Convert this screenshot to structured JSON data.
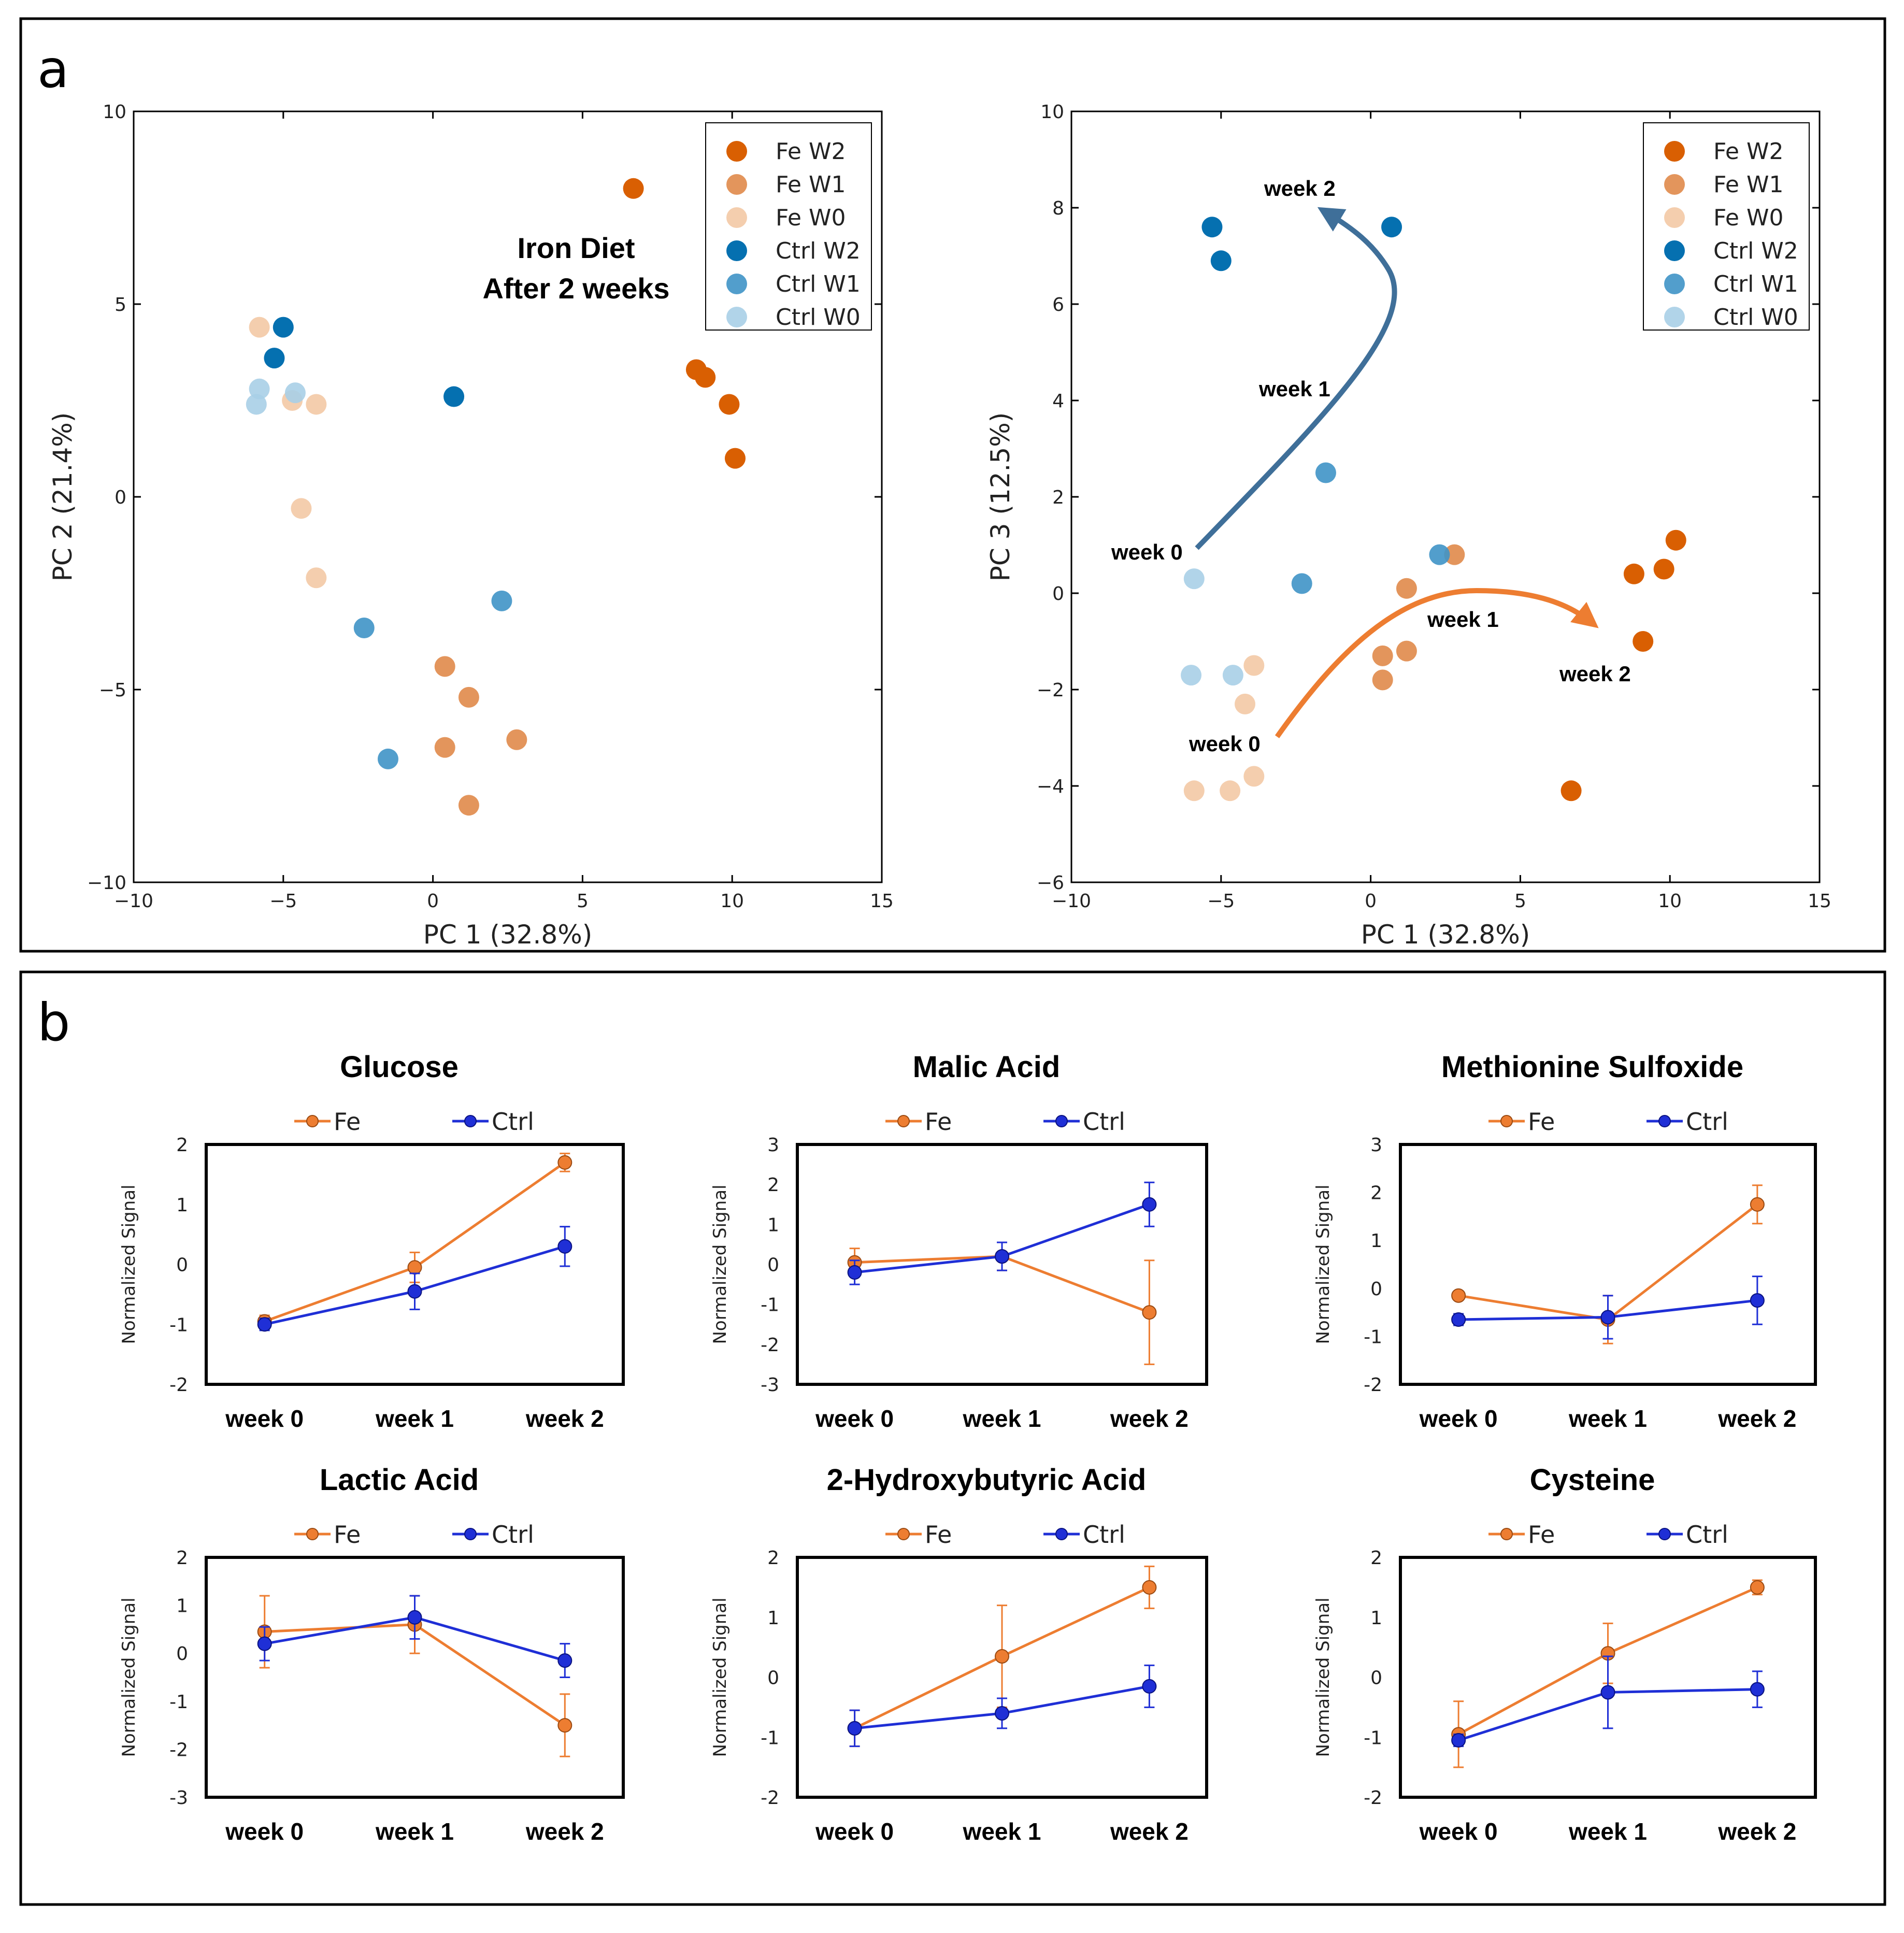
{
  "panel_a": {
    "label": "a",
    "legend": [
      {
        "name": "Fe W2",
        "color": "#d95f02",
        "opacity": 1.0
      },
      {
        "name": "Fe W1",
        "color": "#e08a4a",
        "opacity": 0.9
      },
      {
        "name": "Fe W0",
        "color": "#f3c9a5",
        "opacity": 0.9
      },
      {
        "name": "Ctrl W2",
        "color": "#0570b0",
        "opacity": 1.0
      },
      {
        "name": "Ctrl W1",
        "color": "#3f94c6",
        "opacity": 0.9
      },
      {
        "name": "Ctrl W0",
        "color": "#a9cfe7",
        "opacity": 0.9
      }
    ],
    "annotation_line1": "Iron Diet",
    "annotation_line2": "After 2 weeks",
    "arrow_labels": {
      "ctrl_week0": "week 0",
      "ctrl_week1": "week 1",
      "ctrl_week2": "week 2",
      "fe_week0": "week 0",
      "fe_week1": "week 1",
      "fe_week2": "week 2"
    }
  },
  "panel_b": {
    "label": "b",
    "legend_fe": "Fe",
    "legend_ctrl": "Ctrl",
    "fe_color": "#ed7d31",
    "ctrl_color": "#1f2fd6"
  },
  "chart_data": [
    {
      "type": "scatter",
      "title": "",
      "xlabel": "PC 1 (32.8%)",
      "ylabel": "PC 2 (21.4%)",
      "xlim": [
        -10,
        15
      ],
      "ylim": [
        -10,
        10
      ],
      "xticks": [
        -10,
        -5,
        0,
        5,
        10,
        15
      ],
      "yticks": [
        -10,
        -5,
        0,
        5,
        10
      ],
      "series": [
        {
          "name": "Fe W2",
          "points": [
            [
              6.7,
              8.0
            ],
            [
              8.8,
              3.3
            ],
            [
              9.1,
              3.1
            ],
            [
              9.9,
              2.4
            ],
            [
              10.1,
              1.0
            ]
          ]
        },
        {
          "name": "Fe W1",
          "points": [
            [
              0.4,
              -4.4
            ],
            [
              1.2,
              -5.2
            ],
            [
              0.4,
              -6.5
            ],
            [
              2.8,
              -6.3
            ],
            [
              1.2,
              -8.0
            ]
          ]
        },
        {
          "name": "Fe W0",
          "points": [
            [
              -5.8,
              4.4
            ],
            [
              -4.7,
              2.5
            ],
            [
              -3.9,
              2.4
            ],
            [
              -4.4,
              -0.3
            ],
            [
              -3.9,
              -2.1
            ]
          ]
        },
        {
          "name": "Ctrl W2",
          "points": [
            [
              -5.0,
              4.4
            ],
            [
              -5.3,
              3.6
            ],
            [
              0.7,
              2.6
            ]
          ]
        },
        {
          "name": "Ctrl W1",
          "points": [
            [
              -2.3,
              -3.4
            ],
            [
              2.3,
              -2.7
            ],
            [
              -1.5,
              -6.8
            ]
          ]
        },
        {
          "name": "Ctrl W0",
          "points": [
            [
              -5.8,
              2.8
            ],
            [
              -4.6,
              2.7
            ],
            [
              -5.9,
              2.4
            ]
          ]
        }
      ]
    },
    {
      "type": "scatter",
      "title": "",
      "xlabel": "PC 1 (32.8%)",
      "ylabel": "PC 3 (12.5%)",
      "xlim": [
        -10,
        15
      ],
      "ylim": [
        -6,
        10
      ],
      "xticks": [
        -10,
        -5,
        0,
        5,
        10,
        15
      ],
      "yticks": [
        -6,
        -4,
        -2,
        0,
        2,
        4,
        6,
        8,
        10
      ],
      "series": [
        {
          "name": "Fe W2",
          "points": [
            [
              6.7,
              -4.1
            ],
            [
              8.8,
              0.4
            ],
            [
              9.1,
              -1.0
            ],
            [
              9.8,
              0.5
            ],
            [
              10.2,
              1.1
            ]
          ]
        },
        {
          "name": "Fe W1",
          "points": [
            [
              1.2,
              0.1
            ],
            [
              0.4,
              -1.3
            ],
            [
              1.2,
              -1.2
            ],
            [
              0.4,
              -1.8
            ],
            [
              2.8,
              0.8
            ]
          ]
        },
        {
          "name": "Fe W0",
          "points": [
            [
              -4.2,
              -2.3
            ],
            [
              -3.9,
              -1.5
            ],
            [
              -3.9,
              -3.8
            ],
            [
              -4.7,
              -4.1
            ],
            [
              -5.9,
              -4.1
            ]
          ]
        },
        {
          "name": "Ctrl W2",
          "points": [
            [
              -5.3,
              7.6
            ],
            [
              -5.0,
              6.9
            ],
            [
              0.7,
              7.6
            ]
          ]
        },
        {
          "name": "Ctrl W1",
          "points": [
            [
              -1.5,
              2.5
            ],
            [
              -2.3,
              0.2
            ],
            [
              2.3,
              0.8
            ]
          ]
        },
        {
          "name": "Ctrl W0",
          "points": [
            [
              -5.9,
              0.3
            ],
            [
              -6.0,
              -1.7
            ],
            [
              -4.6,
              -1.7
            ]
          ]
        }
      ]
    },
    {
      "type": "line",
      "title": "Glucose",
      "ylabel": "Normalized Signal",
      "categories": [
        "week 0",
        "week 1",
        "week 2"
      ],
      "ylim": [
        -2,
        2
      ],
      "yticks": [
        -2,
        -1,
        0,
        1,
        2
      ],
      "series": [
        {
          "name": "Fe",
          "values": [
            -0.95,
            -0.05,
            1.7
          ],
          "errors": [
            0.1,
            0.25,
            0.15
          ]
        },
        {
          "name": "Ctrl",
          "values": [
            -1.0,
            -0.45,
            0.3
          ],
          "errors": [
            0.1,
            0.3,
            0.33
          ]
        }
      ]
    },
    {
      "type": "line",
      "title": "Malic Acid",
      "ylabel": "Normalized Signal",
      "categories": [
        "week 0",
        "week 1",
        "week 2"
      ],
      "ylim": [
        -3,
        3
      ],
      "yticks": [
        -3,
        -2,
        -1,
        0,
        1,
        2,
        3
      ],
      "series": [
        {
          "name": "Fe",
          "values": [
            0.05,
            0.2,
            -1.2
          ],
          "errors": [
            0.35,
            0.35,
            1.3
          ]
        },
        {
          "name": "Ctrl",
          "values": [
            -0.2,
            0.2,
            1.5
          ],
          "errors": [
            0.3,
            0.35,
            0.55
          ]
        }
      ]
    },
    {
      "type": "line",
      "title": "Methionine Sulfoxide",
      "ylabel": "Normalized Signal",
      "categories": [
        "week 0",
        "week 1",
        "week 2"
      ],
      "ylim": [
        -2,
        3
      ],
      "yticks": [
        -2,
        -1,
        0,
        1,
        2,
        3
      ],
      "series": [
        {
          "name": "Fe",
          "values": [
            -0.15,
            -0.65,
            1.75
          ],
          "errors": [
            0.05,
            0.5,
            0.4
          ]
        },
        {
          "name": "Ctrl",
          "values": [
            -0.65,
            -0.6,
            -0.25
          ],
          "errors": [
            0.12,
            0.45,
            0.5
          ]
        }
      ]
    },
    {
      "type": "line",
      "title": "Lactic Acid",
      "ylabel": "Normalized Signal",
      "categories": [
        "week 0",
        "week 1",
        "week 2"
      ],
      "ylim": [
        -3,
        2
      ],
      "yticks": [
        -3,
        -2,
        -1,
        0,
        1,
        2
      ],
      "series": [
        {
          "name": "Fe",
          "values": [
            0.45,
            0.6,
            -1.5
          ],
          "errors": [
            0.75,
            0.6,
            0.65
          ]
        },
        {
          "name": "Ctrl",
          "values": [
            0.2,
            0.75,
            -0.15
          ],
          "errors": [
            0.35,
            0.45,
            0.35
          ]
        }
      ]
    },
    {
      "type": "line",
      "title": "2-Hydroxybutyric Acid",
      "ylabel": "Normalized Signal",
      "categories": [
        "week 0",
        "week 1",
        "week 2"
      ],
      "ylim": [
        -2,
        2
      ],
      "yticks": [
        -2,
        -1,
        0,
        1,
        2
      ],
      "series": [
        {
          "name": "Fe",
          "values": [
            -0.85,
            0.35,
            1.5
          ],
          "errors": [
            0.3,
            0.85,
            0.35
          ]
        },
        {
          "name": "Ctrl",
          "values": [
            -0.85,
            -0.6,
            -0.15
          ],
          "errors": [
            0.3,
            0.25,
            0.35
          ]
        }
      ]
    },
    {
      "type": "line",
      "title": "Cysteine",
      "ylabel": "Normalized Signal",
      "categories": [
        "week 0",
        "week 1",
        "week 2"
      ],
      "ylim": [
        -2,
        2
      ],
      "yticks": [
        -2,
        -1,
        0,
        1,
        2
      ],
      "series": [
        {
          "name": "Fe",
          "values": [
            -0.95,
            0.4,
            1.5
          ],
          "errors": [
            0.55,
            0.5,
            0.12
          ]
        },
        {
          "name": "Ctrl",
          "values": [
            -1.05,
            -0.25,
            -0.2
          ],
          "errors": [
            0.1,
            0.6,
            0.3
          ]
        }
      ]
    }
  ]
}
